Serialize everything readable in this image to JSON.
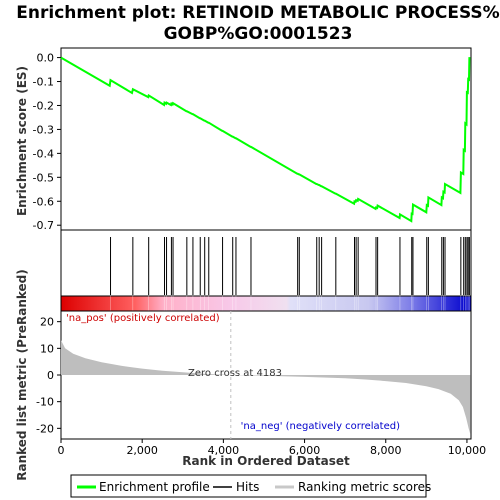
{
  "title_line1": "Enrichment plot: RETINOID METABOLIC PROCESS%",
  "title_line2": "GOBP%GO:0001523",
  "es_ylabel": "Enrichment score (ES)",
  "rank_ylabel": "Ranked list metric (PreRanked)",
  "xlabel": "Rank in Ordered Dataset",
  "annotations": {
    "pos_label": "'na_pos' (positively correlated)",
    "neg_label": "'na_neg' (negatively correlated)",
    "zero_cross": "Zero cross at 4183"
  },
  "legend": {
    "enrichment": "Enrichment profile",
    "hits": "Hits",
    "ranking": "Ranking metric scores"
  },
  "colors": {
    "enrichment_line": "#00ff00",
    "hit_line": "#000000",
    "metric_fill": "#bebebe",
    "pos_color": "#ff0000",
    "neg_color": "#0000ff"
  },
  "chart_data": {
    "type": "line",
    "x_range": [
      0,
      10100
    ],
    "x_ticks": [
      0,
      2000,
      4000,
      6000,
      8000,
      10000
    ],
    "x_tick_labels": [
      "0",
      "2,000",
      "4,000",
      "6,000",
      "8,000",
      "10,000"
    ],
    "es_ylim": [
      -0.72,
      0.04
    ],
    "es_ticks": [
      0.0,
      -0.1,
      -0.2,
      -0.3,
      -0.4,
      -0.5,
      -0.6,
      -0.7
    ],
    "es_tick_labels": [
      "0.0",
      "-0.1",
      "-0.2",
      "-0.3",
      "-0.4",
      "-0.5",
      "-0.6",
      "-0.7"
    ],
    "metric_ylim": [
      -24,
      24
    ],
    "metric_ticks": [
      20,
      10,
      0,
      -10,
      -20
    ],
    "metric_tick_labels": [
      "20",
      "10",
      "0",
      "-10",
      "-20"
    ],
    "zero_cross": 4183,
    "hits": [
      1220,
      1770,
      2160,
      2550,
      2600,
      2720,
      2760,
      3100,
      3250,
      3430,
      3540,
      3640,
      3980,
      4230,
      4310,
      4680,
      5830,
      5870,
      6300,
      6360,
      6420,
      6770,
      7230,
      7270,
      7320,
      7760,
      7800,
      8350,
      8640,
      8670,
      9010,
      9050,
      9380,
      9420,
      9460,
      9850,
      9920,
      9960,
      10000,
      10030,
      10060
    ],
    "enrichment_profile": {
      "x": [
        0,
        1200,
        1220,
        1750,
        1770,
        2150,
        2160,
        2540,
        2550,
        2590,
        2600,
        2710,
        2720,
        2750,
        2760,
        3090,
        3100,
        3240,
        3250,
        3420,
        3430,
        3530,
        3540,
        3630,
        3640,
        3970,
        3980,
        4220,
        4230,
        4300,
        4310,
        4670,
        4680,
        5820,
        5830,
        5860,
        5870,
        6290,
        6300,
        6350,
        6360,
        6410,
        6420,
        6760,
        6770,
        7220,
        7230,
        7260,
        7270,
        7310,
        7320,
        7750,
        7760,
        7790,
        7800,
        8340,
        8350,
        8630,
        8640,
        8660,
        8670,
        9000,
        9010,
        9040,
        9050,
        9370,
        9380,
        9410,
        9420,
        9450,
        9460,
        9840,
        9850,
        9910,
        9920,
        9950,
        9960,
        9990,
        10000,
        10020,
        10030,
        10050,
        10060
      ],
      "y": [
        0.0,
        -0.118,
        -0.094,
        -0.148,
        -0.132,
        -0.165,
        -0.158,
        -0.198,
        -0.188,
        -0.193,
        -0.188,
        -0.198,
        -0.192,
        -0.196,
        -0.19,
        -0.224,
        -0.224,
        -0.236,
        -0.236,
        -0.253,
        -0.253,
        -0.263,
        -0.263,
        -0.272,
        -0.272,
        -0.306,
        -0.306,
        -0.33,
        -0.33,
        -0.337,
        -0.337,
        -0.373,
        -0.373,
        -0.485,
        -0.485,
        -0.488,
        -0.488,
        -0.528,
        -0.528,
        -0.532,
        -0.532,
        -0.537,
        -0.537,
        -0.568,
        -0.568,
        -0.61,
        -0.6,
        -0.602,
        -0.595,
        -0.598,
        -0.59,
        -0.632,
        -0.626,
        -0.628,
        -0.618,
        -0.67,
        -0.655,
        -0.683,
        -0.652,
        -0.653,
        -0.614,
        -0.646,
        -0.616,
        -0.619,
        -0.584,
        -0.616,
        -0.584,
        -0.587,
        -0.56,
        -0.563,
        -0.528,
        -0.565,
        -0.48,
        -0.486,
        -0.385,
        -0.389,
        -0.275,
        -0.279,
        -0.145,
        -0.147,
        -0.09,
        -0.092,
        0.002
      ]
    },
    "metric_scores": {
      "x": [
        0,
        100,
        300,
        600,
        1000,
        1500,
        2000,
        2500,
        3000,
        3500,
        4000,
        4183,
        5000,
        6000,
        7000,
        7500,
        8000,
        8500,
        9000,
        9300,
        9600,
        9800,
        9900,
        9980,
        10040,
        10080
      ],
      "y": [
        13.0,
        10.0,
        8.0,
        6.3,
        4.8,
        3.4,
        2.4,
        1.6,
        1.0,
        0.5,
        0.15,
        0.0,
        -0.3,
        -0.7,
        -1.2,
        -1.7,
        -2.3,
        -3.0,
        -4.2,
        -5.3,
        -7.0,
        -9.5,
        -12.0,
        -16.0,
        -20.0,
        -22.0
      ]
    }
  }
}
